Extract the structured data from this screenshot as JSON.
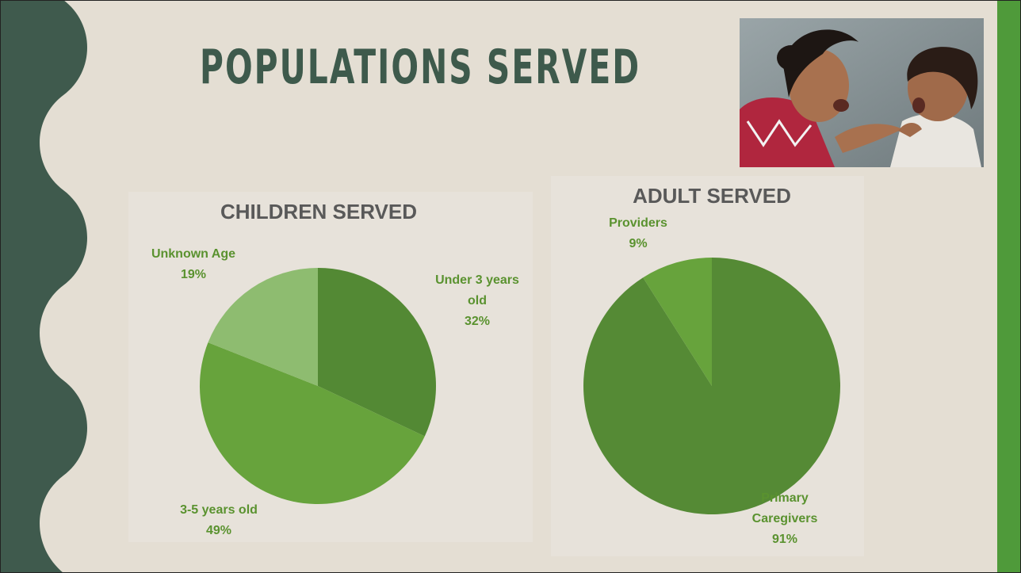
{
  "slide": {
    "title": "POPULATIONS SERVED",
    "colors": {
      "background": "#e4ded3",
      "left_band": "#3f5a4d",
      "right_band": "#4f9a3a",
      "title": "#3e5a4c",
      "label": "#5a922f",
      "chart_title": "#595959"
    }
  },
  "photo": {
    "icon": "mother-and-child-photo"
  },
  "chart_data": [
    {
      "type": "pie",
      "title": "CHILDREN SERVED",
      "categories": [
        "Under 3 years old",
        "3-5 years old",
        "Unknown Age"
      ],
      "values": [
        32,
        49,
        19
      ],
      "data_labels": [
        {
          "name": "Under 3 years",
          "name_line2": "old",
          "pct": "32%"
        },
        {
          "name": "3-5 years old",
          "pct": "49%"
        },
        {
          "name": "Unknown Age",
          "pct": "19%"
        }
      ],
      "colors": [
        "#538934",
        "#67a33c",
        "#8ebc70"
      ],
      "start_angle_deg": 0,
      "legend": "none"
    },
    {
      "type": "pie",
      "title": "ADULT SERVED",
      "categories": [
        "Primary Caregivers",
        "Providers"
      ],
      "values": [
        91,
        9
      ],
      "data_labels": [
        {
          "name": "Primary",
          "name_line2": "Caregivers",
          "pct": "91%"
        },
        {
          "name": "Providers",
          "pct": "9%"
        }
      ],
      "colors": [
        "#558a35",
        "#67a33c"
      ],
      "start_angle_deg": 0,
      "legend": "none"
    }
  ]
}
